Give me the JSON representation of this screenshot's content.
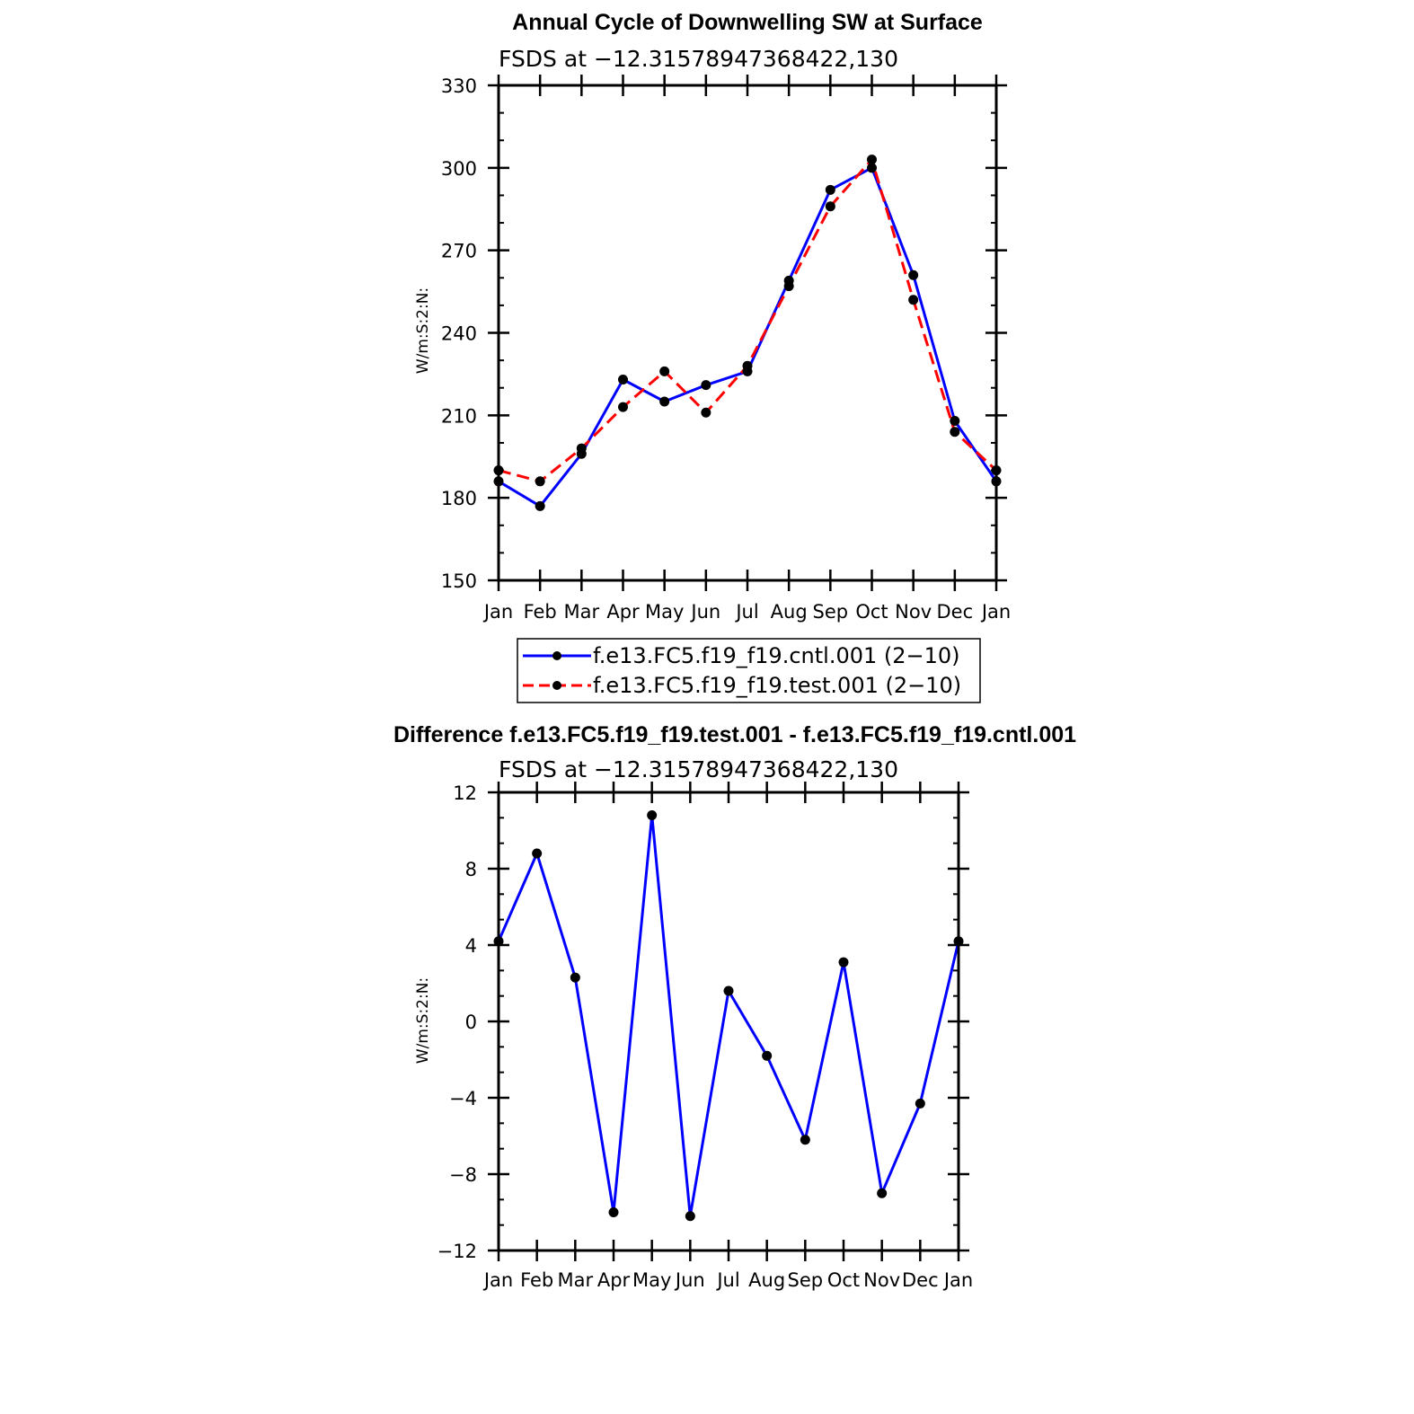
{
  "colors": {
    "cntl": "#0000ff",
    "test": "#ff0000",
    "marker": "#000000",
    "diff": "#0000ff"
  },
  "chart_data": [
    {
      "type": "line",
      "title": "Annual Cycle of Downwelling SW at Surface",
      "subtitle": "FSDS at −12.31578947368422,130",
      "ylabel": "W/m:S:2:N:",
      "xlabel": "",
      "ylim": [
        150,
        330
      ],
      "yticks": [
        150,
        180,
        210,
        240,
        270,
        300,
        330
      ],
      "yticklabels": [
        "150",
        "180",
        "210",
        "240",
        "270",
        "300",
        "330"
      ],
      "categories": [
        "Jan",
        "Feb",
        "Mar",
        "Apr",
        "May",
        "Jun",
        "Jul",
        "Aug",
        "Sep",
        "Oct",
        "Nov",
        "Dec",
        "Jan"
      ],
      "grid": false,
      "legend_position": "bottom",
      "series": [
        {
          "name": "f.e13.FC5.f19_f19.cntl.001 (2−10)",
          "style": "solid",
          "values": [
            186,
            177,
            196,
            223,
            215,
            221,
            226,
            259,
            292,
            300,
            261,
            208,
            186
          ]
        },
        {
          "name": "f.e13.FC5.f19_f19.test.001 (2−10)",
          "style": "dashed",
          "values": [
            190,
            186,
            198,
            213,
            226,
            211,
            228,
            257,
            286,
            303,
            252,
            204,
            190
          ]
        }
      ]
    },
    {
      "type": "line",
      "title": "Difference f.e13.FC5.f19_f19.test.001 - f.e13.FC5.f19_f19.cntl.001",
      "subtitle": "FSDS at −12.31578947368422,130",
      "ylabel": "W/m:S:2:N:",
      "xlabel": "",
      "ylim": [
        -12,
        12
      ],
      "yticks": [
        -12,
        -8,
        -4,
        0,
        4,
        8,
        12
      ],
      "yticklabels": [
        "−12",
        "−8",
        "−4",
        "0",
        "4",
        "8",
        "12"
      ],
      "categories": [
        "Jan",
        "Feb",
        "Mar",
        "Apr",
        "May",
        "Jun",
        "Jul",
        "Aug",
        "Sep",
        "Oct",
        "Nov",
        "Dec",
        "Jan"
      ],
      "grid": false,
      "series": [
        {
          "style": "solid",
          "values": [
            4.2,
            8.8,
            2.3,
            -10.0,
            10.8,
            -10.2,
            1.6,
            -1.8,
            -6.2,
            3.1,
            -9.0,
            -4.3,
            4.2
          ]
        }
      ]
    }
  ]
}
